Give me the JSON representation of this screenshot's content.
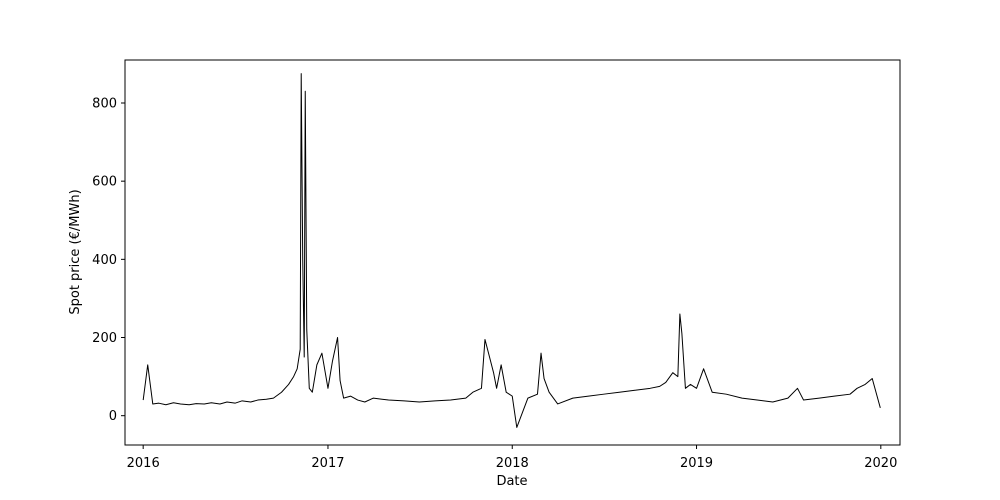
{
  "chart_data": {
    "type": "line",
    "title": "",
    "xlabel": "Date",
    "ylabel": "Spot price (€/MWh)",
    "xlim": [
      "2015-11-26",
      "2020-02-08"
    ],
    "ylim": [
      -75,
      910
    ],
    "grid": false,
    "legend": "none",
    "line_color": "#000000",
    "x_ticks": [
      {
        "date": "2016-01-01",
        "label": "2016"
      },
      {
        "date": "2017-01-01",
        "label": "2017"
      },
      {
        "date": "2018-01-01",
        "label": "2018"
      },
      {
        "date": "2019-01-01",
        "label": "2019"
      },
      {
        "date": "2020-01-01",
        "label": "2020"
      }
    ],
    "y_ticks": [
      0,
      200,
      400,
      600,
      800
    ],
    "series": [
      {
        "x": [
          "2016-01-01",
          "2016-01-10",
          "2016-01-20",
          "2016-02-01",
          "2016-02-15",
          "2016-03-01",
          "2016-03-15",
          "2016-04-01",
          "2016-04-15",
          "2016-05-01",
          "2016-05-15",
          "2016-06-01",
          "2016-06-15",
          "2016-07-01",
          "2016-07-15",
          "2016-08-01",
          "2016-08-15",
          "2016-09-01",
          "2016-09-15",
          "2016-10-01",
          "2016-10-15",
          "2016-10-25",
          "2016-11-01",
          "2016-11-07",
          "2016-11-09",
          "2016-11-12",
          "2016-11-15",
          "2016-11-17",
          "2016-11-20",
          "2016-11-25",
          "2016-12-01",
          "2016-12-10",
          "2016-12-20",
          "2017-01-01",
          "2017-01-10",
          "2017-01-20",
          "2017-01-25",
          "2017-02-01",
          "2017-02-15",
          "2017-03-01",
          "2017-03-15",
          "2017-04-01",
          "2017-05-01",
          "2017-06-01",
          "2017-07-01",
          "2017-08-01",
          "2017-09-01",
          "2017-10-01",
          "2017-10-15",
          "2017-11-01",
          "2017-11-08",
          "2017-11-15",
          "2017-11-25",
          "2017-12-01",
          "2017-12-10",
          "2017-12-20",
          "2018-01-01",
          "2018-01-10",
          "2018-02-01",
          "2018-02-20",
          "2018-02-27",
          "2018-03-05",
          "2018-03-15",
          "2018-04-01",
          "2018-05-01",
          "2018-06-01",
          "2018-07-01",
          "2018-08-01",
          "2018-09-01",
          "2018-10-01",
          "2018-10-20",
          "2018-11-01",
          "2018-11-15",
          "2018-11-25",
          "2018-11-29",
          "2018-12-03",
          "2018-12-10",
          "2018-12-20",
          "2019-01-01",
          "2019-01-15",
          "2019-02-01",
          "2019-03-01",
          "2019-04-01",
          "2019-05-01",
          "2019-06-01",
          "2019-07-01",
          "2019-07-20",
          "2019-08-01",
          "2019-09-01",
          "2019-10-01",
          "2019-11-01",
          "2019-11-15",
          "2019-12-01",
          "2019-12-15",
          "2019-12-31"
        ],
        "y": [
          40,
          130,
          30,
          32,
          28,
          33,
          30,
          28,
          31,
          30,
          33,
          30,
          35,
          32,
          38,
          35,
          40,
          42,
          45,
          60,
          80,
          100,
          120,
          170,
          875,
          400,
          150,
          830,
          220,
          70,
          60,
          130,
          160,
          70,
          140,
          200,
          90,
          45,
          50,
          40,
          35,
          45,
          40,
          38,
          35,
          38,
          40,
          45,
          60,
          70,
          195,
          160,
          110,
          70,
          130,
          60,
          50,
          -30,
          45,
          55,
          160,
          95,
          60,
          30,
          45,
          50,
          55,
          60,
          65,
          70,
          75,
          85,
          110,
          100,
          260,
          210,
          70,
          80,
          70,
          120,
          60,
          55,
          45,
          40,
          35,
          45,
          70,
          40,
          45,
          50,
          55,
          70,
          80,
          95,
          20
        ]
      }
    ]
  }
}
